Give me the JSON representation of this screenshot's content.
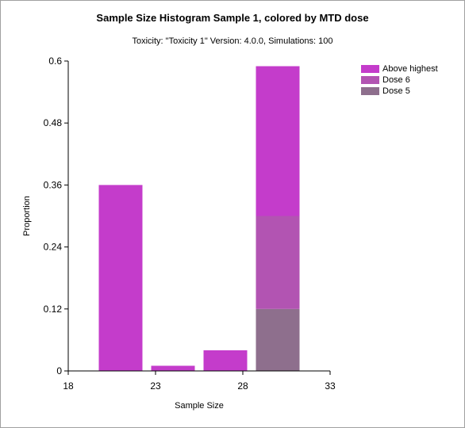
{
  "chart_data": {
    "type": "bar",
    "title": "Sample Size Histogram Sample 1, colored by MTD dose",
    "subtitle": "Toxicity: \"Toxicity 1\" Version: 4.0.0, Simulations: 100",
    "xlabel": "Sample Size",
    "ylabel": "Proportion",
    "xlim": [
      18,
      33
    ],
    "ylim": [
      0,
      0.6
    ],
    "x_ticks": [
      "18",
      "23",
      "28",
      "33"
    ],
    "y_ticks": [
      "0",
      "0.12",
      "0.24",
      "0.36",
      "0.48",
      "0.6"
    ],
    "bin_width": 2.5,
    "bins": [
      21,
      24,
      27,
      30
    ],
    "series": [
      {
        "name": "Dose 5",
        "color": "#8e6f8d",
        "values": [
          0,
          0,
          0,
          0.12
        ]
      },
      {
        "name": "Dose 6",
        "color": "#b254b2",
        "values": [
          0,
          0,
          0,
          0.18
        ]
      },
      {
        "name": "Above highest",
        "color": "#c43ccb",
        "values": [
          0.36,
          0.01,
          0.04,
          0.29
        ]
      }
    ],
    "legend_order": [
      "Above highest",
      "Dose 6",
      "Dose 5"
    ],
    "legend_position": "top-right",
    "grid": false
  }
}
